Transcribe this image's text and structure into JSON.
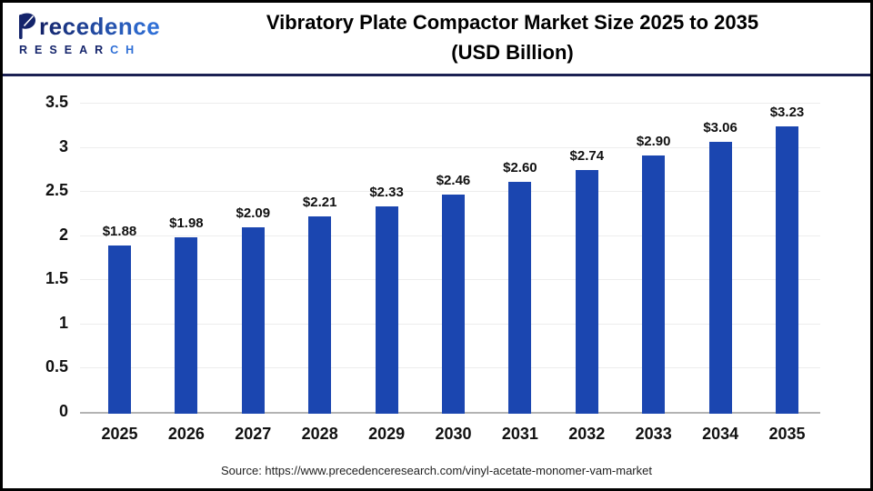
{
  "header": {
    "title_line1": "Vibratory Plate Compactor Market Size 2025 to 2035",
    "title_line2": "(USD Billion)"
  },
  "logo": {
    "wordmark": "Precedence",
    "subtitle": "RESEARCH",
    "navy": "#14246b",
    "blue": "#2f6fd6"
  },
  "footer": {
    "source": "Source: https://www.precedenceresearch.com/vinyl-acetate-monomer-vam-market"
  },
  "colors": {
    "bar": "#1b46b0",
    "grid": "#ededed",
    "baseline": "#b3b3b3",
    "divider": "#1b2153",
    "text": "#111111"
  },
  "chart_data": {
    "type": "bar",
    "title": "Vibratory Plate Compactor Market Size 2025 to 2035 (USD Billion)",
    "categories": [
      "2025",
      "2026",
      "2027",
      "2028",
      "2029",
      "2030",
      "2031",
      "2032",
      "2033",
      "2034",
      "2035"
    ],
    "values": [
      1.88,
      1.98,
      2.09,
      2.21,
      2.33,
      2.46,
      2.6,
      2.74,
      2.9,
      3.06,
      3.23
    ],
    "value_labels": [
      "$1.88",
      "$1.98",
      "$2.09",
      "$2.21",
      "$2.33",
      "$2.46",
      "$2.60",
      "$2.74",
      "$2.90",
      "$3.06",
      "$3.23"
    ],
    "xlabel": "",
    "ylabel": "",
    "ylim": [
      0,
      3.5
    ],
    "y_ticks": [
      "0",
      "0.5",
      "1",
      "1.5",
      "2",
      "2.5",
      "3",
      "3.5"
    ],
    "grid": true,
    "legend": false
  }
}
